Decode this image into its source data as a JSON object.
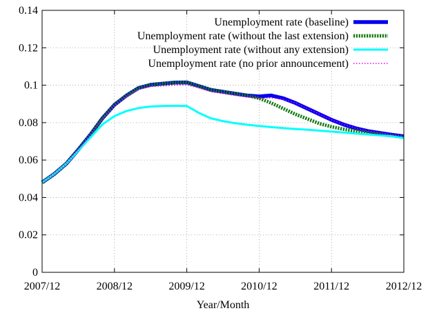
{
  "chart_data": {
    "type": "line",
    "title": "",
    "xlabel": "Year/Month",
    "ylabel": "",
    "xlim": [
      0,
      60
    ],
    "ylim": [
      0,
      0.14
    ],
    "grid": true,
    "legend_position": "top-right",
    "x_ticks": [
      {
        "value": 0,
        "label": "2007/12"
      },
      {
        "value": 12,
        "label": "2008/12"
      },
      {
        "value": 24,
        "label": "2009/12"
      },
      {
        "value": 36,
        "label": "2010/12"
      },
      {
        "value": 48,
        "label": "2011/12"
      },
      {
        "value": 60,
        "label": "2012/12"
      }
    ],
    "y_ticks": [
      {
        "value": 0,
        "label": "0"
      },
      {
        "value": 0.02,
        "label": "0.02"
      },
      {
        "value": 0.04,
        "label": "0.04"
      },
      {
        "value": 0.06,
        "label": "0.06"
      },
      {
        "value": 0.08,
        "label": "0.08"
      },
      {
        "value": 0.1,
        "label": "0.1"
      },
      {
        "value": 0.12,
        "label": "0.12"
      },
      {
        "value": 0.14,
        "label": "0.14"
      }
    ],
    "x": [
      0,
      2,
      4,
      6,
      8,
      10,
      12,
      14,
      16,
      18,
      20,
      22,
      24,
      26,
      28,
      30,
      32,
      34,
      36,
      38,
      40,
      42,
      44,
      46,
      48,
      50,
      52,
      54,
      56,
      58,
      60
    ],
    "series": [
      {
        "name": "Unemployment rate (baseline)",
        "color": "#0000ee",
        "style": "solid-thick",
        "values": [
          0.048,
          0.0525,
          0.058,
          0.0655,
          0.0735,
          0.0823,
          0.0895,
          0.0945,
          0.0985,
          0.1002,
          0.1008,
          0.1014,
          0.1015,
          0.0995,
          0.0975,
          0.0965,
          0.0955,
          0.0945,
          0.094,
          0.0945,
          0.093,
          0.0905,
          0.0875,
          0.0845,
          0.0815,
          0.079,
          0.077,
          0.0755,
          0.0745,
          0.0735,
          0.0727
        ]
      },
      {
        "name": "Unemployment rate (without the last extension)",
        "color": "#117711",
        "style": "dashed-thick",
        "values": [
          0.048,
          0.0525,
          0.058,
          0.0655,
          0.0735,
          0.0823,
          0.0895,
          0.0945,
          0.0985,
          0.1002,
          0.1008,
          0.1014,
          0.1015,
          0.0995,
          0.0975,
          0.0965,
          0.0955,
          0.0945,
          0.093,
          0.0905,
          0.0875,
          0.0845,
          0.082,
          0.0795,
          0.0778,
          0.0765,
          0.0755,
          0.0745,
          0.0737,
          0.073,
          0.0723
        ]
      },
      {
        "name": "Unemployment rate (without any extension)",
        "color": "#00ffff",
        "style": "solid",
        "values": [
          0.048,
          0.0525,
          0.058,
          0.065,
          0.072,
          0.079,
          0.0835,
          0.0862,
          0.0878,
          0.0886,
          0.0889,
          0.089,
          0.0889,
          0.0852,
          0.0823,
          0.0808,
          0.0797,
          0.0789,
          0.0782,
          0.0776,
          0.0771,
          0.0766,
          0.0762,
          0.0757,
          0.0752,
          0.0747,
          0.0742,
          0.0737,
          0.0732,
          0.0727,
          0.0717
        ]
      },
      {
        "name": "Unemployment rate (no prior announcement)",
        "color": "#ee00ee",
        "style": "dotted",
        "values": [
          0.048,
          0.0525,
          0.058,
          0.0655,
          0.0733,
          0.082,
          0.089,
          0.094,
          0.0978,
          0.0993,
          0.0996,
          0.1,
          0.1002,
          0.0985,
          0.0965,
          0.0955,
          0.0945,
          0.0938,
          0.093,
          0.0932,
          0.0925,
          0.0905,
          0.0875,
          0.0845,
          0.0815,
          0.079,
          0.077,
          0.0755,
          0.0745,
          0.0735,
          0.0727
        ]
      }
    ]
  }
}
